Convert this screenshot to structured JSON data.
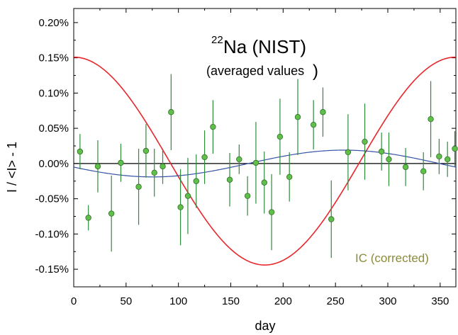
{
  "chart_data": {
    "type": "scatter",
    "title": {
      "superscript": "22",
      "main": "Na (NIST)",
      "subtitle": "(averaged values",
      "subtitle_paren": ")"
    },
    "xlabel": "day",
    "ylabel": "I / <I> - 1",
    "xlim": [
      0,
      365
    ],
    "ylim": [
      -0.175,
      0.22
    ],
    "x_ticks": [
      0,
      50,
      100,
      150,
      200,
      250,
      300,
      350
    ],
    "x_tick_labels": [
      "0",
      "50",
      "100",
      "150",
      "200",
      "250",
      "300",
      "350"
    ],
    "y_ticks": [
      -0.15,
      -0.1,
      -0.05,
      0.0,
      0.05,
      0.1,
      0.15,
      0.2
    ],
    "y_tick_labels": [
      "-0.15%",
      "-0.10%",
      "-0.05%",
      "0.00%",
      "0.05%",
      "0.10%",
      "0.15%",
      "0.20%"
    ],
    "annotation": {
      "text": "IC (corrected)",
      "color": "#8b8b3a"
    },
    "colors": {
      "points_fill": "#5fbf4a",
      "points_stroke": "#2e6e24",
      "errorbar": "#2e8b3a",
      "red_curve": "#e8262b",
      "blue_curve": "#3452a6",
      "zero_line": "#000000"
    },
    "series": [
      {
        "type": "scatter_errorbar",
        "points": [
          {
            "x": 6,
            "y": 0.017,
            "err": 0.025
          },
          {
            "x": 14,
            "y": -0.077,
            "err": 0.018
          },
          {
            "x": 23,
            "y": -0.004,
            "err": 0.037
          },
          {
            "x": 36,
            "y": -0.071,
            "err": 0.054
          },
          {
            "x": 45,
            "y": 0.001,
            "err": 0.027
          },
          {
            "x": 62,
            "y": -0.033,
            "err": 0.054
          },
          {
            "x": 69,
            "y": 0.018,
            "err": 0.038
          },
          {
            "x": 77,
            "y": -0.013,
            "err": 0.034
          },
          {
            "x": 85,
            "y": -0.004,
            "err": 0.025
          },
          {
            "x": 93,
            "y": 0.073,
            "err": 0.054
          },
          {
            "x": 102,
            "y": -0.062,
            "err": 0.054
          },
          {
            "x": 109,
            "y": -0.046,
            "err": 0.054
          },
          {
            "x": 117,
            "y": -0.025,
            "err": 0.038
          },
          {
            "x": 125,
            "y": 0.009,
            "err": 0.038
          },
          {
            "x": 133,
            "y": 0.052,
            "err": 0.038
          },
          {
            "x": 149,
            "y": -0.023,
            "err": 0.038
          },
          {
            "x": 158,
            "y": 0.006,
            "err": 0.021
          },
          {
            "x": 166,
            "y": -0.046,
            "err": 0.028
          },
          {
            "x": 174,
            "y": 0.001,
            "err": 0.058
          },
          {
            "x": 182,
            "y": -0.027,
            "err": 0.044
          },
          {
            "x": 189,
            "y": -0.069,
            "err": 0.054
          },
          {
            "x": 197,
            "y": 0.038,
            "err": 0.054
          },
          {
            "x": 206,
            "y": -0.019,
            "err": 0.035
          },
          {
            "x": 214,
            "y": 0.066,
            "err": 0.054
          },
          {
            "x": 229,
            "y": 0.055,
            "err": 0.035
          },
          {
            "x": 238,
            "y": 0.073,
            "err": 0.035
          },
          {
            "x": 246,
            "y": -0.079,
            "err": 0.055
          },
          {
            "x": 262,
            "y": 0.016,
            "err": 0.054
          },
          {
            "x": 278,
            "y": 0.031,
            "err": 0.054
          },
          {
            "x": 294,
            "y": 0.017,
            "err": 0.027
          },
          {
            "x": 301,
            "y": 0.006,
            "err": 0.038
          },
          {
            "x": 317,
            "y": -0.005,
            "err": 0.027
          },
          {
            "x": 334,
            "y": -0.011,
            "err": 0.027
          },
          {
            "x": 341,
            "y": 0.063,
            "err": 0.054
          },
          {
            "x": 349,
            "y": 0.01,
            "err": 0.025
          },
          {
            "x": 357,
            "y": 0.006,
            "err": 0.025
          },
          {
            "x": 364,
            "y": 0.021,
            "err": 0.025
          }
        ]
      },
      {
        "type": "cosine_curve",
        "amplitude": 0.1475,
        "offset": 0.0035,
        "phase_day": 0,
        "period": 365
      },
      {
        "type": "cosine_curve",
        "amplitude": 0.019,
        "offset": 0.0,
        "phase_day": 258,
        "period": 365
      }
    ]
  }
}
